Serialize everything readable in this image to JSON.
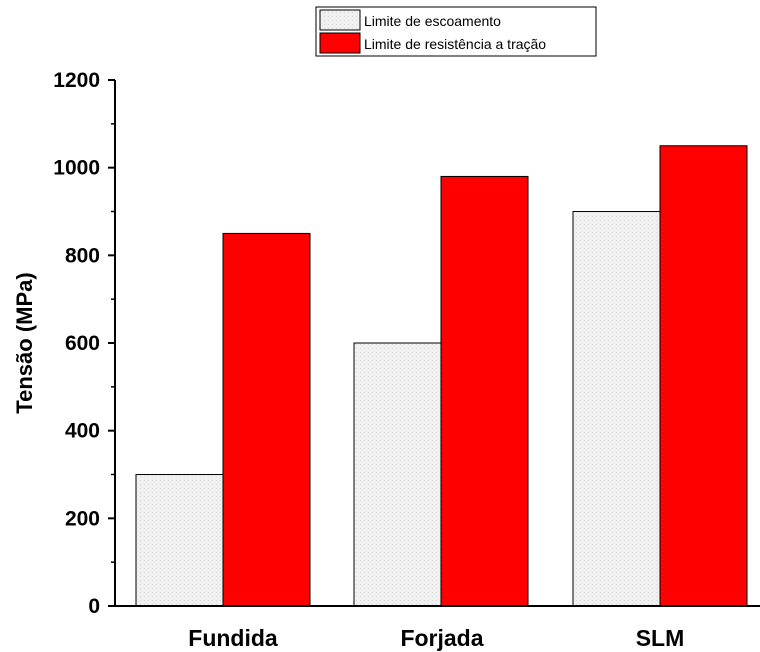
{
  "chart_data": {
    "type": "bar",
    "categories": [
      "Fundida",
      "Forjada",
      "SLM"
    ],
    "series": [
      {
        "name": "Limite de escoamento",
        "values": [
          300,
          600,
          900
        ]
      },
      {
        "name": "Limite de resistência a tração",
        "values": [
          850,
          980,
          1050
        ]
      }
    ],
    "xlabel": "",
    "ylabel": "Tensão (MPa)",
    "ylim": [
      0,
      1200
    ],
    "yticks": [
      "0",
      "200",
      "400",
      "600",
      "800",
      "1000",
      "1200"
    ],
    "legend_position": "top-center",
    "grid": false,
    "colors": {
      "series_0": "#f0f0f0",
      "series_1": "#ff0000",
      "axis": "#000000"
    }
  }
}
